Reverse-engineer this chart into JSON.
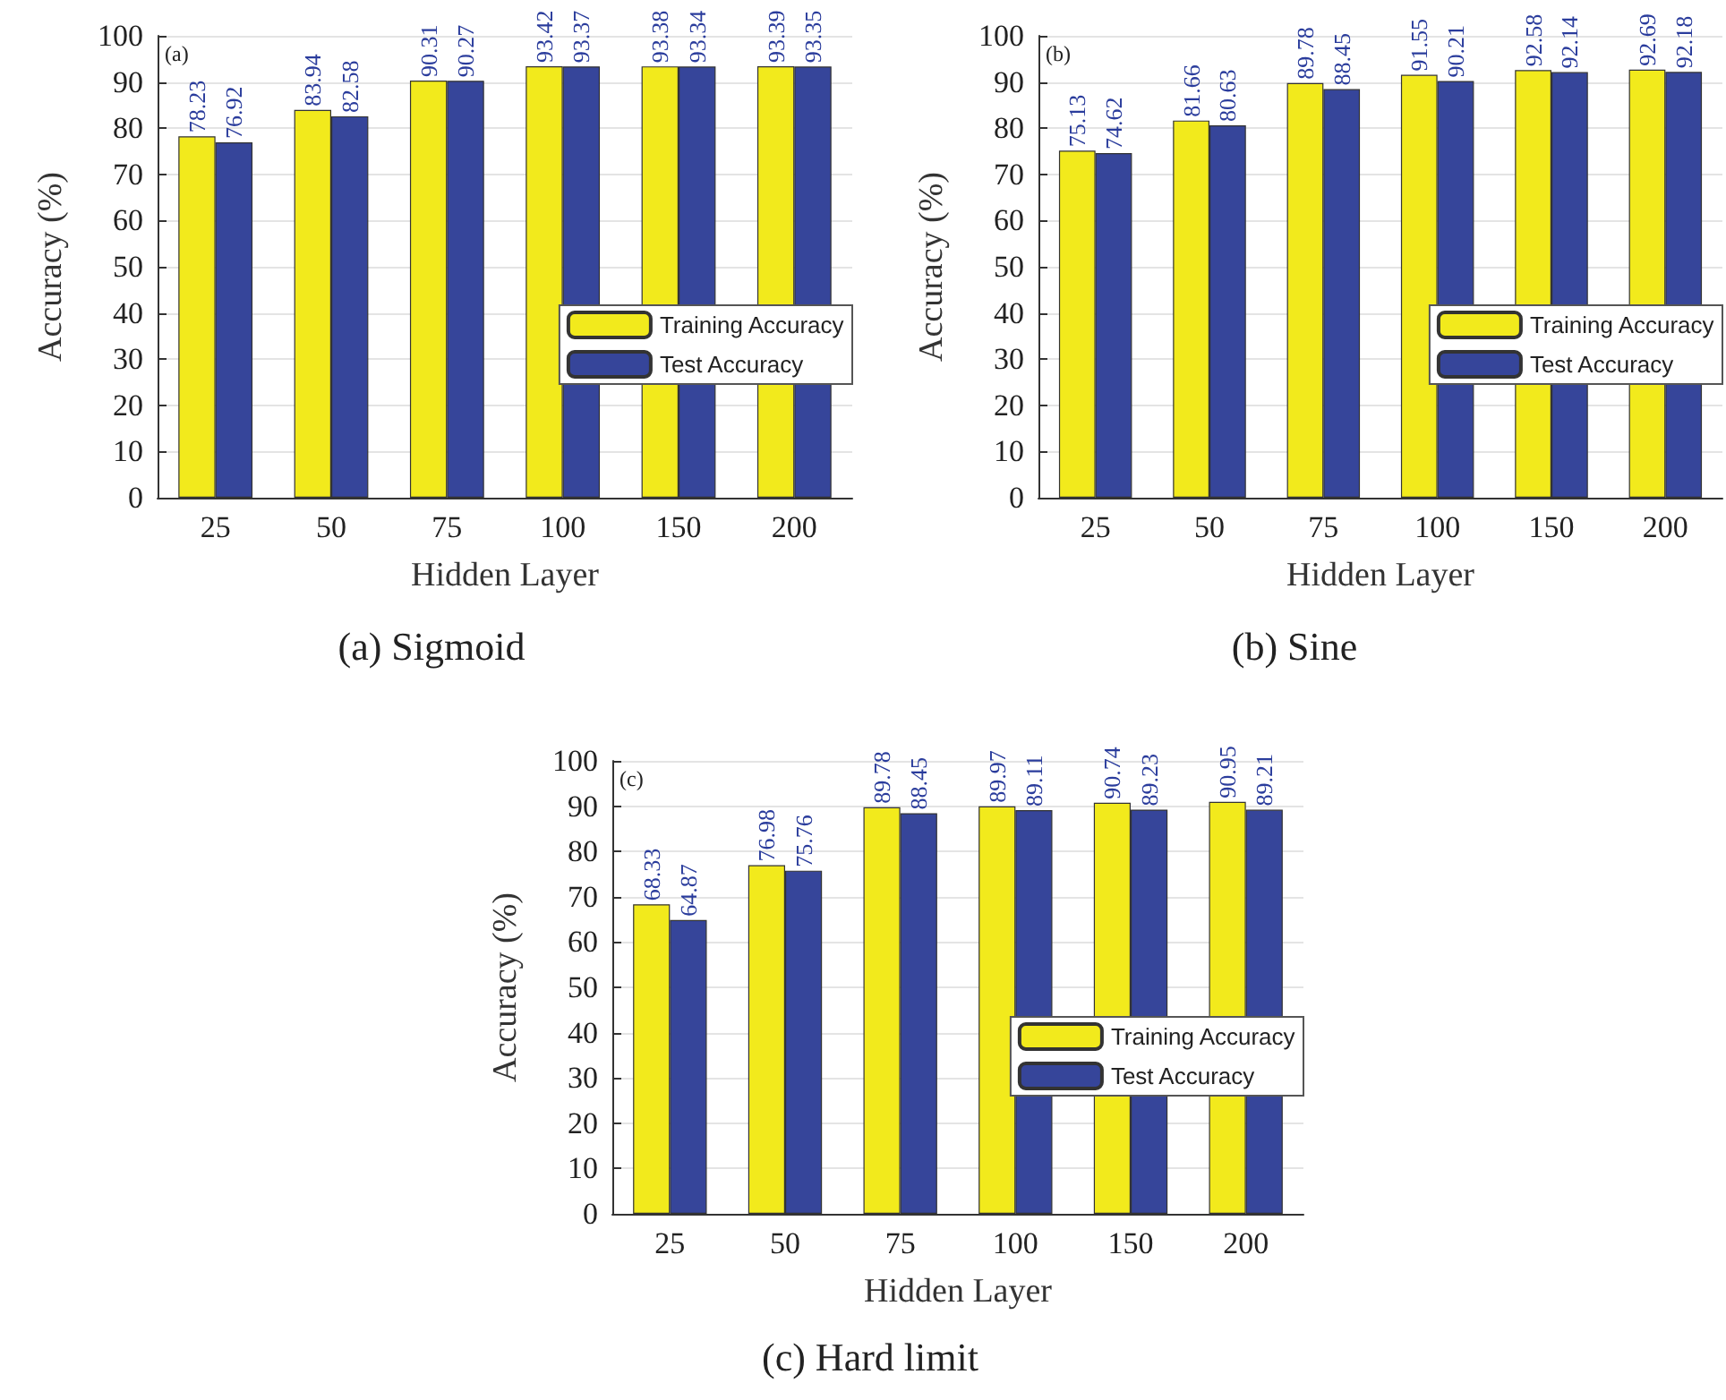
{
  "chart_data": [
    {
      "type": "bar",
      "title": "(a) Sigmoid",
      "annotations": [
        "(a)"
      ],
      "xlabel": "Hidden Layer",
      "ylabel": "Accuracy (%)",
      "categories": [
        "25",
        "50",
        "75",
        "100",
        "150",
        "200"
      ],
      "series": [
        {
          "name": "Training Accuracy",
          "color": "#f2ea1c",
          "values": [
            78.23,
            83.94,
            90.31,
            93.42,
            93.38,
            93.39
          ]
        },
        {
          "name": "Test Accuracy",
          "color": "#36459a",
          "values": [
            76.92,
            82.58,
            90.27,
            93.37,
            93.34,
            93.35
          ]
        }
      ],
      "ylim": [
        0,
        100
      ],
      "yticks": [
        0,
        10,
        20,
        30,
        40,
        50,
        60,
        70,
        80,
        90,
        100
      ],
      "grid": "y",
      "legend": "right",
      "data_labels": true
    },
    {
      "type": "bar",
      "title": "(b) Sine",
      "annotations": [
        "(b)"
      ],
      "xlabel": "Hidden Layer",
      "ylabel": "Accuracy (%)",
      "categories": [
        "25",
        "50",
        "75",
        "100",
        "150",
        "200"
      ],
      "series": [
        {
          "name": "Training Accuracy",
          "color": "#f2ea1c",
          "values": [
            75.13,
            81.66,
            89.78,
            91.55,
            92.58,
            92.69
          ]
        },
        {
          "name": "Test Accuracy",
          "color": "#36459a",
          "values": [
            74.62,
            80.63,
            88.45,
            90.21,
            92.14,
            92.18
          ]
        }
      ],
      "ylim": [
        0,
        100
      ],
      "yticks": [
        0,
        10,
        20,
        30,
        40,
        50,
        60,
        70,
        80,
        90,
        100
      ],
      "grid": "y",
      "legend": "right",
      "data_labels": true
    },
    {
      "type": "bar",
      "title": "(c) Hard limit",
      "annotations": [
        "(c)"
      ],
      "xlabel": "Hidden Layer",
      "ylabel": "Accuracy (%)",
      "categories": [
        "25",
        "50",
        "75",
        "100",
        "150",
        "200"
      ],
      "series": [
        {
          "name": "Training Accuracy",
          "color": "#f2ea1c",
          "values": [
            68.33,
            76.98,
            89.78,
            89.97,
            90.74,
            90.95
          ]
        },
        {
          "name": "Test Accuracy",
          "color": "#36459a",
          "values": [
            64.87,
            75.76,
            88.45,
            89.11,
            89.23,
            89.21
          ]
        }
      ],
      "ylim": [
        0,
        100
      ],
      "yticks": [
        0,
        10,
        20,
        30,
        40,
        50,
        60,
        70,
        80,
        90,
        100
      ],
      "grid": "y",
      "legend": "right",
      "data_labels": true
    }
  ]
}
